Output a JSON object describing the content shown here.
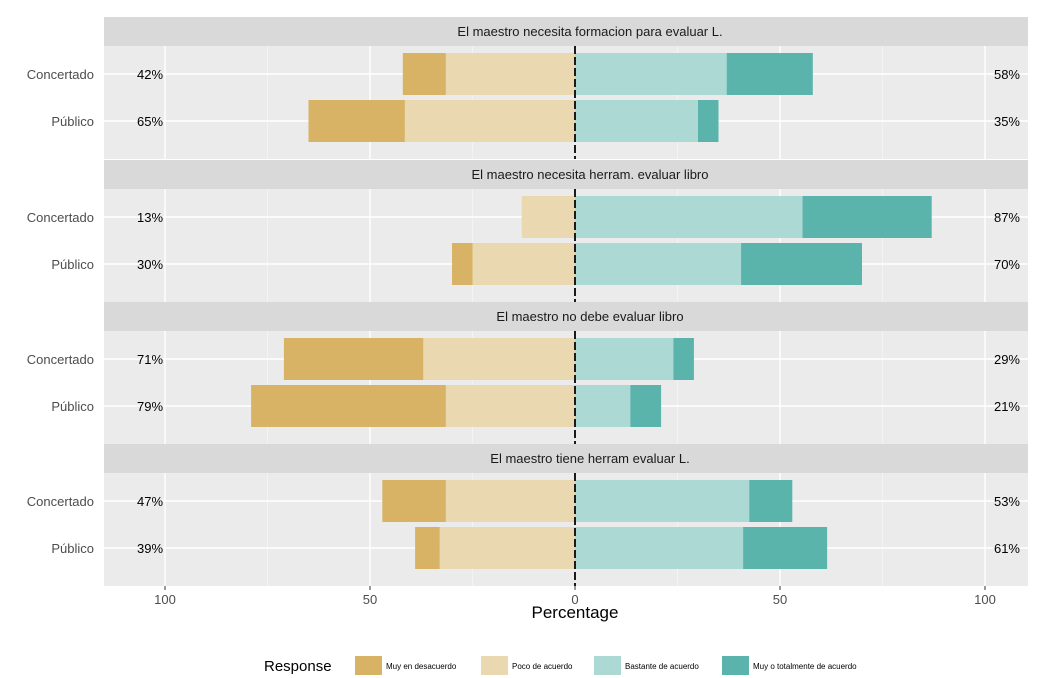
{
  "chart_data": {
    "type": "bar",
    "subtype": "diverging-stacked-horizontal",
    "xlabel": "Percentage",
    "xlim": [
      -100,
      100
    ],
    "x_ticks": [
      -100,
      -50,
      0,
      50,
      100
    ],
    "x_tick_labels": [
      "100",
      "50",
      "0",
      "50",
      "100"
    ],
    "grid": true,
    "categories": [
      "Concertado",
      "Público"
    ],
    "legend": {
      "title": "Response",
      "position": "bottom",
      "items": [
        "Muy en desacuerdo",
        "Poco de acuerdo",
        "Bastante de acuerdo",
        "Muy o totalmente de acuerdo"
      ]
    },
    "colors": {
      "Muy en desacuerdo": "#d8b365",
      "Poco de acuerdo": "#ead9b0",
      "Bastante de acuerdo": "#acd9d4",
      "Muy o totalmente de acuerdo": "#5ab4ac",
      "panel_bg": "#ebebeb",
      "strip_bg": "#d9d9d9"
    },
    "panels": [
      {
        "title": "El maestro necesita formacion para evaluar L.",
        "rows": [
          {
            "category": "Concertado",
            "left_label": "42%",
            "right_label": "58%",
            "values": {
              "Muy en desacuerdo": 10.5,
              "Poco de acuerdo": 31.5,
              "Bastante de acuerdo": 37,
              "Muy o totalmente de acuerdo": 21
            }
          },
          {
            "category": "Público",
            "left_label": "65%",
            "right_label": "35%",
            "values": {
              "Muy en desacuerdo": 23.5,
              "Poco de acuerdo": 41.5,
              "Bastante de acuerdo": 30,
              "Muy o totalmente de acuerdo": 5
            }
          }
        ]
      },
      {
        "title": "El maestro necesita herram. evaluar libro",
        "rows": [
          {
            "category": "Concertado",
            "left_label": "13%",
            "right_label": "87%",
            "values": {
              "Muy en desacuerdo": 0,
              "Poco de acuerdo": 13,
              "Bastante de acuerdo": 55.5,
              "Muy o totalmente de acuerdo": 31.5
            }
          },
          {
            "category": "Público",
            "left_label": "30%",
            "right_label": "70%",
            "values": {
              "Muy en desacuerdo": 5,
              "Poco de acuerdo": 25,
              "Bastante de acuerdo": 40.5,
              "Muy o totalmente de acuerdo": 29.5
            }
          }
        ]
      },
      {
        "title": "El maestro no debe evaluar libro",
        "rows": [
          {
            "category": "Concertado",
            "left_label": "71%",
            "right_label": "29%",
            "values": {
              "Muy en desacuerdo": 34,
              "Poco de acuerdo": 37,
              "Bastante de acuerdo": 24,
              "Muy o totalmente de acuerdo": 5
            }
          },
          {
            "category": "Público",
            "left_label": "79%",
            "right_label": "21%",
            "values": {
              "Muy en desacuerdo": 47.5,
              "Poco de acuerdo": 31.5,
              "Bastante de acuerdo": 13.5,
              "Muy o totalmente de acuerdo": 7.5
            }
          }
        ]
      },
      {
        "title": "El maestro tiene herram evaluar L.",
        "rows": [
          {
            "category": "Concertado",
            "left_label": "47%",
            "right_label": "53%",
            "values": {
              "Muy en desacuerdo": 15.5,
              "Poco de acuerdo": 31.5,
              "Bastante de acuerdo": 42.5,
              "Muy o totalmente de acuerdo": 10.5
            }
          },
          {
            "category": "Público",
            "left_label": "39%",
            "right_label": "61%",
            "values": {
              "Muy en desacuerdo": 6,
              "Poco de acuerdo": 33,
              "Bastante de acuerdo": 41,
              "Muy o totalmente de acuerdo": 20.5
            }
          }
        ]
      }
    ]
  }
}
